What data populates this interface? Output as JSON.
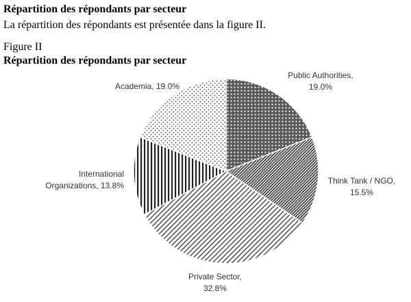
{
  "section_heading": "Répartition des répondants par secteur",
  "intro_text": "La répartition des répondants est présentée dans la figure II.",
  "figure_label": "Figure II",
  "figure_title": "Répartition des répondants par secteur",
  "chart_data": {
    "type": "pie",
    "title": "Répartition des répondants par secteur",
    "start_angle_deg": 0,
    "direction": "clockwise",
    "slices": [
      {
        "name": "Public Authorities",
        "label_lines": [
          "Public Authorities,",
          "19.0%"
        ],
        "value": 19.0,
        "pattern": "dots-dense"
      },
      {
        "name": "Think Tank / NGO",
        "label_lines": [
          "Think Tank / NGO,",
          "15.5%"
        ],
        "value": 15.5,
        "pattern": "diag-fine"
      },
      {
        "name": "Private Sector",
        "label_lines": [
          "Private Sector,",
          "32.8%"
        ],
        "value": 32.8,
        "pattern": "diag-wide"
      },
      {
        "name": "International Organizations",
        "label_lines": [
          "International",
          "Organizations, 13.8%"
        ],
        "value": 13.8,
        "pattern": "vertical"
      },
      {
        "name": "Academia",
        "label_lines": [
          "Academia, 19.0%"
        ],
        "value": 19.0,
        "pattern": "dots-sparse"
      }
    ],
    "legend": "none"
  }
}
